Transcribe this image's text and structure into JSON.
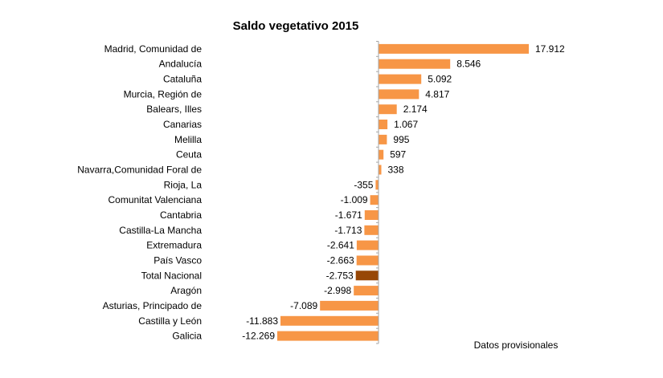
{
  "chart_data": {
    "type": "bar",
    "orientation": "horizontal",
    "title": "Saldo vegetativo 2015",
    "note": "Datos provisionales",
    "categories": [
      "Madrid, Comunidad de",
      "Andalucía",
      "Cataluña",
      "Murcia, Región de",
      "Balears, Illes",
      "Canarias",
      "Melilla",
      "Ceuta",
      "Navarra,Comunidad Foral de",
      "Rioja, La",
      "Comunitat Valenciana",
      "Cantabria",
      "Castilla-La Mancha",
      "Extremadura",
      "País Vasco",
      "Total Nacional",
      "Aragón",
      "Asturias, Principado de",
      "Castilla y León",
      "Galicia"
    ],
    "values": [
      17912,
      8546,
      5092,
      4817,
      2174,
      1067,
      995,
      597,
      338,
      -355,
      -1009,
      -1671,
      -1713,
      -2641,
      -2663,
      -2753,
      -2998,
      -7089,
      -11883,
      -12269
    ],
    "value_labels": [
      "17.912",
      "8.546",
      "5.092",
      "4.817",
      "2.174",
      "1.067",
      "995",
      "597",
      "338",
      "-355",
      "-1.009",
      "-1.671",
      "-1.713",
      "-2.641",
      "-2.663",
      "-2.753",
      "-2.998",
      "-7.089",
      "-11.883",
      "-12.269"
    ],
    "highlight_index": 15,
    "xlim": [
      -12269,
      17912
    ],
    "grid": false,
    "colors": {
      "bar": "#F79646",
      "highlight": "#974706",
      "axis": "#A6A6A6"
    }
  }
}
